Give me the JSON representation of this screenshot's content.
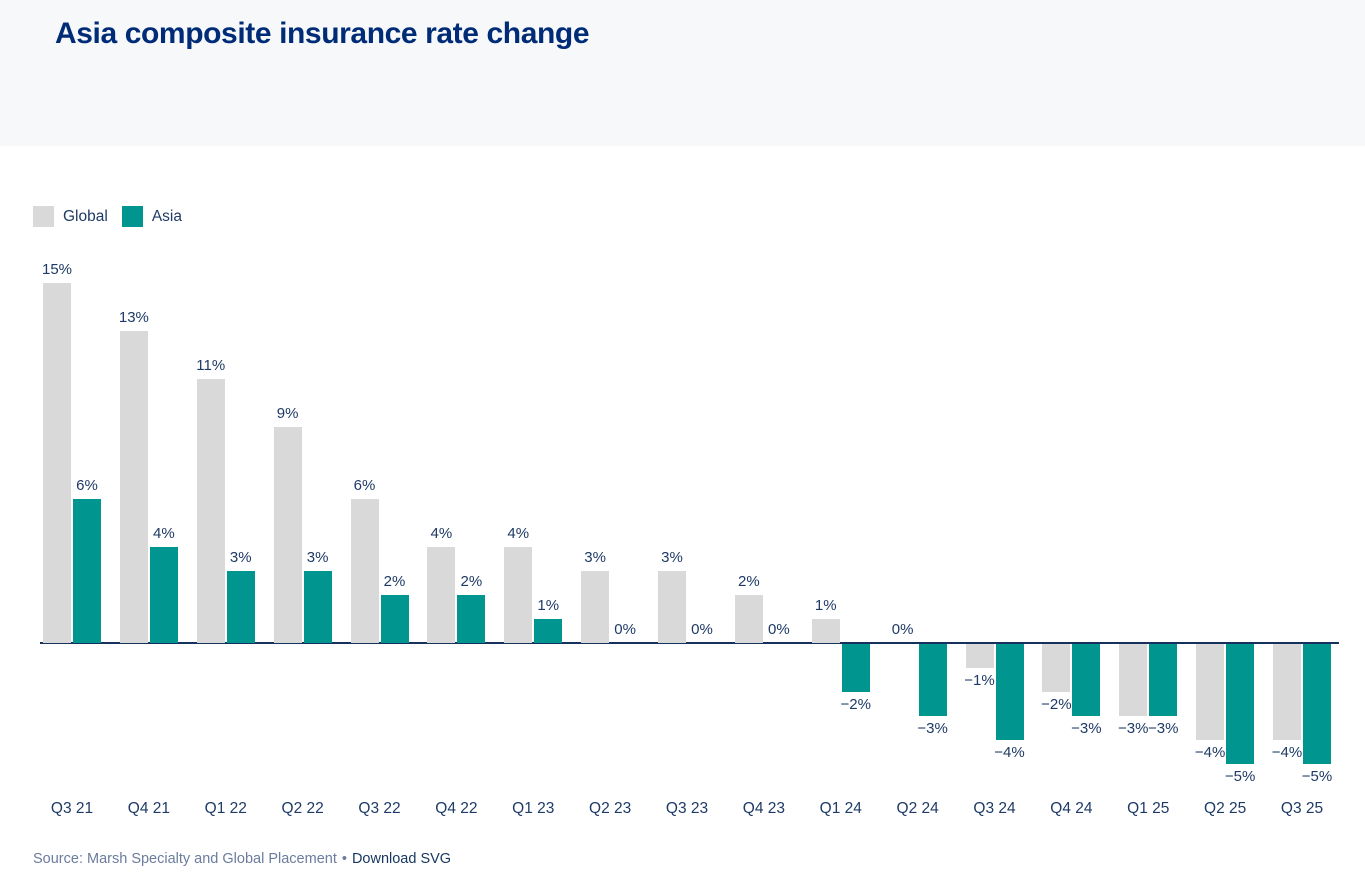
{
  "header": {
    "title": "Asia composite insurance rate change"
  },
  "legend": {
    "items": [
      {
        "label": "Global",
        "color": "#d9d9d9"
      },
      {
        "label": "Asia",
        "color": "#00968f"
      }
    ]
  },
  "chart_data": {
    "type": "bar",
    "title": "Asia composite insurance rate change",
    "categories": [
      "Q3 21",
      "Q4 21",
      "Q1 22",
      "Q2 22",
      "Q3 22",
      "Q4 22",
      "Q1 23",
      "Q2 23",
      "Q3 23",
      "Q4 23",
      "Q1 24",
      "Q2 24",
      "Q3 24",
      "Q4 24",
      "Q1 25",
      "Q2 25",
      "Q3 25"
    ],
    "series": [
      {
        "name": "Global",
        "color": "#d9d9d9",
        "values": [
          15,
          13,
          11,
          9,
          6,
          4,
          4,
          3,
          3,
          2,
          1,
          0,
          -1,
          -2,
          -3,
          -4,
          -4
        ]
      },
      {
        "name": "Asia",
        "color": "#00968f",
        "values": [
          6,
          4,
          3,
          3,
          2,
          2,
          1,
          0,
          0,
          0,
          -2,
          -3,
          -4,
          -3,
          -3,
          -5,
          -5
        ]
      }
    ],
    "unit": "%",
    "ylim": [
      -5,
      15
    ],
    "value_labels": "every bar labeled with its percentage",
    "legend_position": "top-left",
    "grid": "off",
    "xlabel": "",
    "ylabel": ""
  },
  "footer": {
    "source": "Source: Marsh Specialty and Global Placement",
    "separator": "•",
    "download_label": "Download SVG"
  },
  "colors": {
    "title_navy": "#002c77",
    "label_navy": "#1e3a66",
    "axis_navy": "#16325c",
    "global_bar": "#d9d9d9",
    "asia_bar": "#00968f",
    "header_band": "#f7f8fa",
    "source_slate": "#6b7c9d"
  }
}
